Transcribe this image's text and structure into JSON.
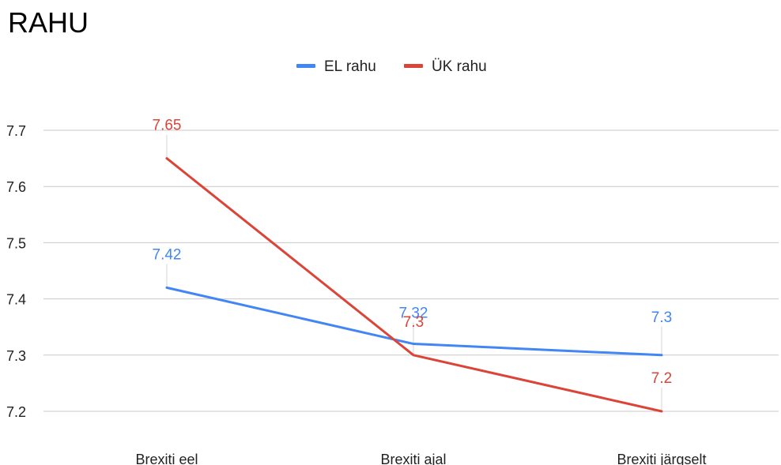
{
  "chart_data": {
    "type": "line",
    "title": "RAHU",
    "categories": [
      "Brexiti eel",
      "Brexiti ajal",
      "Brexiti järgselt"
    ],
    "series": [
      {
        "name": "EL rahu",
        "values": [
          7.42,
          7.32,
          7.3
        ],
        "labels": [
          "7.42",
          "7.32",
          "7.3"
        ],
        "color": "#4285f4"
      },
      {
        "name": "ÜK rahu",
        "values": [
          7.65,
          7.3,
          7.2
        ],
        "labels": [
          "7.65",
          "7.3",
          "7.2"
        ],
        "color": "#db4437"
      }
    ],
    "y_ticks": [
      "7.2",
      "7.3",
      "7.4",
      "7.5",
      "7.6",
      "7.7"
    ],
    "ylim": [
      7.2,
      7.7
    ],
    "grid": true,
    "legend_position": "top-center",
    "xlabel": "",
    "ylabel": ""
  }
}
